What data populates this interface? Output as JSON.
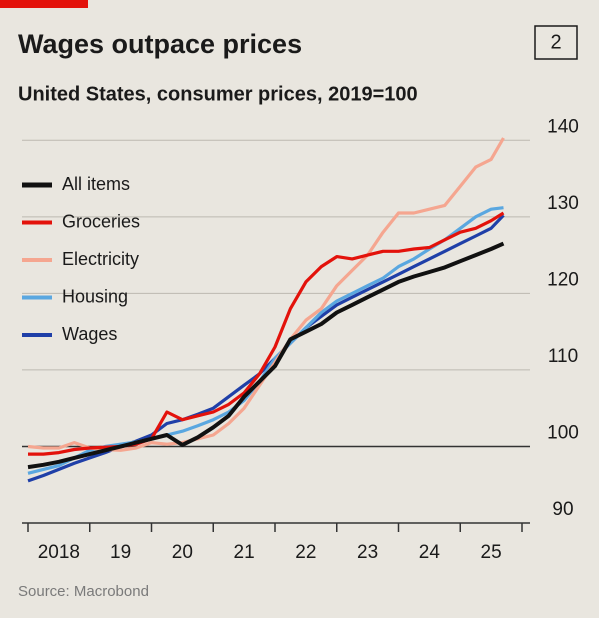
{
  "chart_data": {
    "type": "line",
    "title": "Wages outpace prices",
    "badge": "2",
    "subtitle": "United States, consumer prices, 2019=100",
    "source": "Source: Macrobond",
    "x": [
      2018,
      2018.25,
      2018.5,
      2018.75,
      2019,
      2019.25,
      2019.5,
      2019.75,
      2020,
      2020.25,
      2020.5,
      2020.75,
      2021,
      2021.25,
      2021.5,
      2021.75,
      2022,
      2022.25,
      2022.5,
      2022.75,
      2023,
      2023.25,
      2023.5,
      2023.75,
      2024,
      2024.25,
      2024.5,
      2024.75,
      2025,
      2025.25,
      2025.5,
      2025.7
    ],
    "series": [
      {
        "name": "All items",
        "color": "#111111",
        "values": [
          97.3,
          97.6,
          98,
          98.5,
          99,
          99.5,
          100,
          100.5,
          101,
          101.5,
          100.2,
          101.2,
          102.5,
          104,
          106.5,
          108.5,
          110.5,
          114,
          115,
          116,
          117.5,
          118.5,
          119.5,
          120.5,
          121.5,
          122.2,
          122.8,
          123.4,
          124.2,
          125,
          125.8,
          126.5
        ]
      },
      {
        "name": "Groceries",
        "color": "#e3120b",
        "values": [
          99,
          99,
          99.2,
          99.6,
          99.8,
          99.9,
          100,
          100.3,
          101,
          104.5,
          103.5,
          104,
          104.5,
          105.5,
          107,
          109.5,
          113,
          118,
          121.5,
          123.5,
          124.8,
          124.5,
          125,
          125.5,
          125.5,
          125.8,
          126,
          127,
          128,
          128.5,
          129.5,
          130.5
        ]
      },
      {
        "name": "Electricity",
        "color": "#f5a690",
        "values": [
          100,
          99.8,
          99.8,
          100.5,
          99.8,
          99.6,
          99.5,
          99.8,
          100.5,
          100.3,
          100.5,
          101,
          101.5,
          103,
          105,
          108,
          111,
          114,
          116.5,
          118,
          121,
          123,
          125,
          128,
          130.5,
          130.5,
          131,
          131.5,
          134,
          136.5,
          137.5,
          140.3
        ]
      },
      {
        "name": "Housing",
        "color": "#5aa7e0",
        "values": [
          96.5,
          97,
          97.5,
          98.5,
          99.5,
          100,
          100.3,
          100.6,
          101,
          101.5,
          102,
          102.7,
          103.5,
          104.5,
          106,
          108.5,
          111.5,
          113.5,
          115.5,
          117.5,
          119,
          120,
          121,
          122,
          123.5,
          124.5,
          125.8,
          127,
          128.5,
          130,
          131,
          131.2
        ]
      },
      {
        "name": "Wages",
        "color": "#1f3fa8",
        "values": [
          95.5,
          96.2,
          97,
          97.8,
          98.5,
          99.2,
          100,
          100.7,
          101.5,
          103,
          103.5,
          104.2,
          105,
          106.5,
          108,
          109.5,
          111.5,
          113.5,
          115.5,
          117,
          118.5,
          119.5,
          120.5,
          121.5,
          122.5,
          123.5,
          124.5,
          125.5,
          126.5,
          127.5,
          128.5,
          130.2
        ]
      }
    ],
    "xlim": [
      2018,
      2026
    ],
    "xticks": [
      {
        "value": 2018.5,
        "label": "2018"
      },
      {
        "value": 2019.5,
        "label": "19"
      },
      {
        "value": 2020.5,
        "label": "20"
      },
      {
        "value": 2021.5,
        "label": "21"
      },
      {
        "value": 2022.5,
        "label": "22"
      },
      {
        "value": 2023.5,
        "label": "23"
      },
      {
        "value": 2024.5,
        "label": "24"
      },
      {
        "value": 2025.5,
        "label": "25"
      }
    ],
    "ylim": [
      90,
      142
    ],
    "yticks": [
      90,
      100,
      110,
      120,
      130,
      140
    ],
    "reference_line": 100,
    "grid": true,
    "legend": "top-left"
  }
}
